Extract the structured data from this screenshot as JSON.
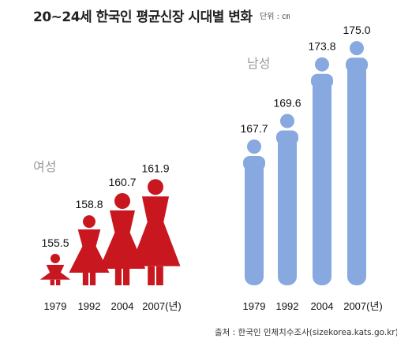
{
  "title": "20~24세 한국인 평균신장 시대별 변화",
  "unit": "단위 : ㎝",
  "source": "출처 : 한국인 인체치수조사(sizekorea.kats.go.kr)",
  "colors": {
    "female": "#c8171e",
    "male": "#87a9df"
  },
  "chart_data": [
    {
      "type": "bar",
      "series_label": "여성",
      "categories": [
        "1979",
        "1992",
        "2004",
        "2007(년)"
      ],
      "values": [
        155.5,
        158.8,
        160.7,
        161.9
      ],
      "value_labels": [
        "155.5",
        "158.8",
        "160.7",
        "161.9"
      ],
      "ylabel": "",
      "icon": "woman-figure-icon"
    },
    {
      "type": "bar",
      "series_label": "남성",
      "categories": [
        "1979",
        "1992",
        "2004",
        "2007(년)"
      ],
      "values": [
        167.7,
        169.6,
        173.8,
        175.0
      ],
      "value_labels": [
        "167.7",
        "169.6",
        "173.8",
        "175.0"
      ],
      "ylabel": "",
      "icon": "man-figure-icon"
    }
  ]
}
